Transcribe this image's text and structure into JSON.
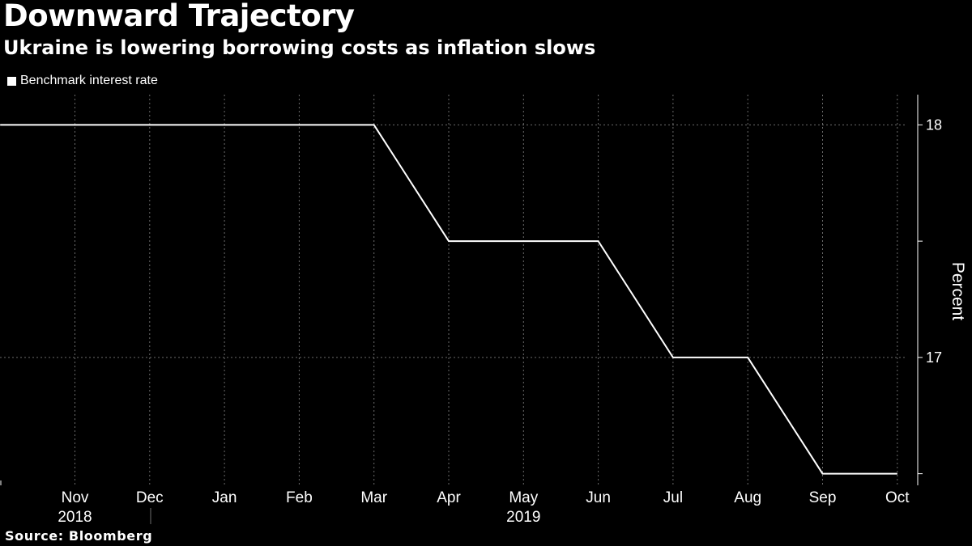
{
  "chart_data": {
    "type": "line",
    "title": "Downward Trajectory",
    "subtitle": "Ukraine is lowering borrowing costs as inflation slows",
    "legend": "Benchmark interest rate",
    "ylabel": "Percent",
    "source": "Source: Bloomberg",
    "ylim": [
      16.45,
      18.13
    ],
    "ytick_values": [
      18,
      17.5,
      17,
      16.5
    ],
    "ytick_labels": [
      "18",
      "",
      "17",
      ""
    ],
    "x_month_ticks": [
      "Nov",
      "Dec",
      "Jan",
      "Feb",
      "Mar",
      "Apr",
      "May",
      "Jun",
      "Jul",
      "Aug",
      "Sep",
      "Oct"
    ],
    "x_year_labels": [
      {
        "label": "2018",
        "month_index": 0
      },
      {
        "label": "2019",
        "month_index": 6
      }
    ],
    "series": [
      {
        "name": "Benchmark interest rate",
        "x": [
          "2018-10",
          "2018-11",
          "2018-12",
          "2019-01",
          "2019-02",
          "2019-03",
          "2019-04",
          "2019-05",
          "2019-06",
          "2019-07",
          "2019-08",
          "2019-09",
          "2019-10"
        ],
        "values": [
          18.0,
          18.0,
          18.0,
          18.0,
          18.0,
          18.0,
          17.5,
          17.5,
          17.5,
          17.0,
          17.0,
          16.5,
          16.5
        ]
      }
    ],
    "colors": {
      "background": "#000000",
      "line": "#ffffff",
      "grid": "#6b6b6b",
      "text": "#ffffff"
    }
  }
}
